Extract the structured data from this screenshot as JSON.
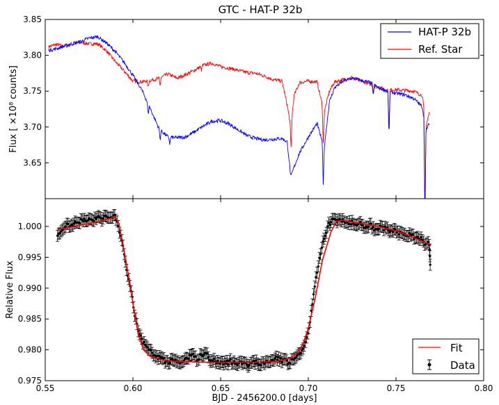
{
  "chart_data": [
    {
      "type": "line",
      "title": "GTC - HAT-P 32b",
      "xlabel": "",
      "ylabel": "Flux [ ×10⁸ counts]",
      "xlim": [
        0.55,
        0.8
      ],
      "ylim": [
        3.6,
        3.85
      ],
      "yticks": [
        "3.65",
        "3.70",
        "3.75",
        "3.80",
        "3.85"
      ],
      "ytick_values": [
        3.65,
        3.7,
        3.75,
        3.8,
        3.85
      ],
      "grid": false,
      "legend_position": "top-right",
      "x": [
        0.552,
        0.556,
        0.56,
        0.565,
        0.57,
        0.575,
        0.58,
        0.585,
        0.59,
        0.595,
        0.6,
        0.605,
        0.61,
        0.615,
        0.62,
        0.625,
        0.63,
        0.635,
        0.64,
        0.645,
        0.65,
        0.655,
        0.66,
        0.665,
        0.67,
        0.675,
        0.68,
        0.685,
        0.688,
        0.69,
        0.692,
        0.695,
        0.7,
        0.705,
        0.709,
        0.712,
        0.715,
        0.72,
        0.725,
        0.73,
        0.735,
        0.74,
        0.745,
        0.75,
        0.755,
        0.76,
        0.765,
        0.767,
        0.769
      ],
      "series": [
        {
          "name": "HAT-P 32b",
          "color": "#0000ff",
          "values": [
            3.807,
            3.809,
            3.812,
            3.816,
            3.819,
            3.824,
            3.826,
            3.817,
            3.805,
            3.79,
            3.772,
            3.752,
            3.725,
            3.697,
            3.686,
            3.685,
            3.686,
            3.693,
            3.701,
            3.708,
            3.709,
            3.704,
            3.696,
            3.688,
            3.684,
            3.682,
            3.683,
            3.684,
            3.679,
            3.63,
            3.645,
            3.664,
            3.686,
            3.705,
            3.67,
            3.735,
            3.755,
            3.764,
            3.768,
            3.765,
            3.762,
            3.755,
            3.75,
            3.747,
            3.745,
            3.74,
            3.728,
            3.695,
            3.705
          ]
        },
        {
          "name": "Ref. Star",
          "color": "#ff0000",
          "values": [
            3.812,
            3.815,
            3.813,
            3.815,
            3.818,
            3.816,
            3.816,
            3.806,
            3.791,
            3.778,
            3.764,
            3.763,
            3.765,
            3.768,
            3.774,
            3.768,
            3.773,
            3.779,
            3.786,
            3.789,
            3.784,
            3.782,
            3.779,
            3.776,
            3.775,
            3.771,
            3.766,
            3.764,
            3.73,
            3.7,
            3.745,
            3.762,
            3.764,
            3.763,
            3.72,
            3.75,
            3.763,
            3.766,
            3.769,
            3.764,
            3.76,
            3.755,
            3.752,
            3.752,
            3.751,
            3.75,
            3.744,
            3.7,
            3.72
          ]
        }
      ],
      "spikes": [
        {
          "x": 0.6087,
          "series": 0,
          "depth": 0.015
        },
        {
          "x": 0.6155,
          "series": 0,
          "depth": 0.014
        },
        {
          "x": 0.621,
          "series": 0,
          "depth": 0.01
        },
        {
          "x": 0.6087,
          "series": 1,
          "depth": 0.01
        },
        {
          "x": 0.6155,
          "series": 1,
          "depth": 0.012
        },
        {
          "x": 0.639,
          "series": 1,
          "depth": 0.006
        },
        {
          "x": 0.6902,
          "series": 1,
          "depth": 0.035
        },
        {
          "x": 0.7085,
          "series": 0,
          "depth": 0.055
        },
        {
          "x": 0.7085,
          "series": 1,
          "depth": 0.05
        },
        {
          "x": 0.737,
          "series": 0,
          "depth": 0.014
        },
        {
          "x": 0.737,
          "series": 1,
          "depth": 0.012
        },
        {
          "x": 0.746,
          "series": 0,
          "depth": 0.065
        },
        {
          "x": 0.746,
          "series": 1,
          "depth": 0.06
        },
        {
          "x": 0.7665,
          "series": 0,
          "depth": 0.14
        },
        {
          "x": 0.7665,
          "series": 1,
          "depth": 0.14
        }
      ]
    },
    {
      "type": "scatter",
      "title": "",
      "xlabel": "BJD - 2456200.0 [days]",
      "ylabel": "Relative Flux",
      "xlim": [
        0.55,
        0.8
      ],
      "ylim": [
        0.975,
        1.0045
      ],
      "xticks": [
        "0.55",
        "0.60",
        "0.65",
        "0.70",
        "0.75",
        "0.80"
      ],
      "xtick_values": [
        0.55,
        0.6,
        0.65,
        0.7,
        0.75,
        0.8
      ],
      "yticks": [
        "0.975",
        "0.980",
        "0.985",
        "0.990",
        "0.995",
        "1.000"
      ],
      "ytick_values": [
        0.975,
        0.98,
        0.985,
        0.99,
        0.995,
        1.0
      ],
      "grid": false,
      "legend_position": "bottom-right",
      "series": [
        {
          "name": "Fit",
          "color": "#ff0000",
          "x": [
            0.557,
            0.57,
            0.58,
            0.59,
            0.592,
            0.596,
            0.6,
            0.603,
            0.606,
            0.61,
            0.615,
            0.62,
            0.63,
            0.64,
            0.65,
            0.66,
            0.67,
            0.68,
            0.685,
            0.69,
            0.694,
            0.697,
            0.7,
            0.704,
            0.708,
            0.713,
            0.716,
            0.719,
            0.73,
            0.74,
            0.75,
            0.76,
            0.77
          ],
          "values": [
            0.9995,
            1.0002,
            1.0008,
            1.0015,
            1.0005,
            0.9945,
            0.9875,
            0.9825,
            0.98,
            0.9789,
            0.9785,
            0.9782,
            0.9781,
            0.978,
            0.978,
            0.978,
            0.978,
            0.9781,
            0.9783,
            0.9787,
            0.9795,
            0.981,
            0.9835,
            0.9885,
            0.9945,
            0.9992,
            1.0008,
            1.001,
            1.0005,
            1.0,
            0.9993,
            0.9982,
            0.997
          ]
        },
        {
          "name": "Data",
          "color": "#000000",
          "x": [
            0.557,
            0.559,
            0.561,
            0.563,
            0.565,
            0.567,
            0.569,
            0.571,
            0.573,
            0.575,
            0.577,
            0.579,
            0.581,
            0.583,
            0.585,
            0.587,
            0.589,
            0.591,
            0.593,
            0.595,
            0.597,
            0.599,
            0.601,
            0.603,
            0.605,
            0.607,
            0.609,
            0.611,
            0.613,
            0.615,
            0.617,
            0.619,
            0.621,
            0.623,
            0.625,
            0.627,
            0.629,
            0.631,
            0.633,
            0.635,
            0.637,
            0.639,
            0.641,
            0.643,
            0.645,
            0.647,
            0.649,
            0.651,
            0.653,
            0.655,
            0.657,
            0.659,
            0.661,
            0.663,
            0.665,
            0.667,
            0.669,
            0.671,
            0.673,
            0.675,
            0.677,
            0.679,
            0.681,
            0.683,
            0.685,
            0.687,
            0.689,
            0.691,
            0.693,
            0.695,
            0.697,
            0.699,
            0.701,
            0.703,
            0.705,
            0.707,
            0.709,
            0.711,
            0.713,
            0.715,
            0.717,
            0.719,
            0.721,
            0.723,
            0.725,
            0.727,
            0.729,
            0.731,
            0.733,
            0.735,
            0.737,
            0.739,
            0.741,
            0.743,
            0.745,
            0.747,
            0.749,
            0.751,
            0.753,
            0.755,
            0.757,
            0.759,
            0.761,
            0.763,
            0.765,
            0.767,
            0.769,
            0.7695
          ],
          "values": [
            0.9985,
            0.9992,
            0.9998,
            1.0004,
            1.0003,
            1.0008,
            1.0006,
            1.0011,
            1.0009,
            1.0013,
            1.001,
            1.0012,
            1.0015,
            1.0013,
            1.0016,
            1.0014,
            1.0018,
            1.0008,
            0.9985,
            0.9955,
            0.992,
            0.9895,
            0.9855,
            0.983,
            0.9818,
            0.9808,
            0.98,
            0.9795,
            0.9788,
            0.979,
            0.9785,
            0.9782,
            0.9779,
            0.9783,
            0.978,
            0.9778,
            0.9782,
            0.9786,
            0.9791,
            0.9789,
            0.9784,
            0.9792,
            0.9795,
            0.9788,
            0.9783,
            0.9781,
            0.9779,
            0.978,
            0.9778,
            0.9782,
            0.9779,
            0.9777,
            0.9781,
            0.978,
            0.9776,
            0.9779,
            0.9782,
            0.9778,
            0.9775,
            0.9777,
            0.978,
            0.9783,
            0.9786,
            0.9788,
            0.978,
            0.9785,
            0.9779,
            0.9785,
            0.9788,
            0.9793,
            0.9802,
            0.982,
            0.9845,
            0.989,
            0.9925,
            0.9955,
            0.998,
            1.0,
            1.0007,
            1.0012,
            1.001,
            1.0008,
            1.0006,
            1.0004,
            1.0009,
            1.0003,
            1.0005,
            1.0002,
            1.0,
            1.0004,
            0.9999,
            0.9996,
            1.0001,
            0.9994,
            0.9998,
            0.9993,
            0.9996,
            0.9992,
            0.999,
            0.9988,
            0.9984,
            0.9987,
            0.9982,
            0.998,
            0.9978,
            0.9972,
            0.997,
            0.9938
          ],
          "errors": 0.0009
        }
      ]
    }
  ]
}
